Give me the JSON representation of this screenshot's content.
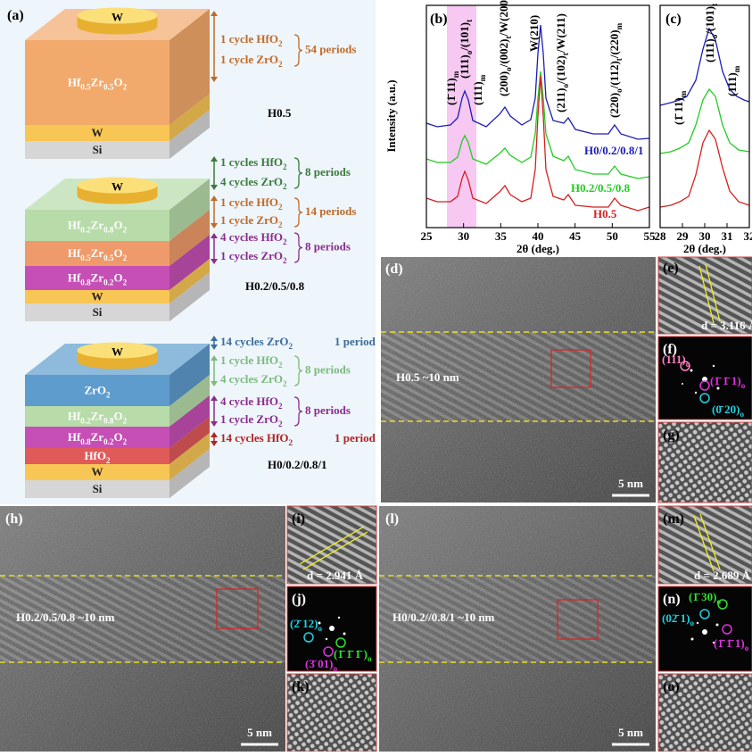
{
  "panel_a": {
    "label": "(a)",
    "stacks": [
      {
        "name": "H0.5",
        "layers": [
          "W",
          "Hf0.5Zr0.5O2",
          "W",
          "Si"
        ],
        "annotations": [
          {
            "cycles": [
              "1 cycle HfO2",
              "1 cycle ZrO2"
            ],
            "periods": "54 periods"
          }
        ]
      },
      {
        "name": "H0.2/0.5/0.8",
        "layers": [
          "W",
          "Hf0.2Zr0.8O2",
          "Hf0.5Zr0.5O2",
          "Hf0.8Zr0.2O2",
          "W",
          "Si"
        ],
        "annotations": [
          {
            "cycles": [
              "1 cycles HfO2",
              "4 cycles ZrO2"
            ],
            "periods": "8 periods"
          },
          {
            "cycles": [
              "1 cycle HfO2",
              "1 cycle ZrO2"
            ],
            "periods": "14 periods"
          },
          {
            "cycles": [
              "4 cycles HfO2",
              "1 cycles ZrO2"
            ],
            "periods": "8 periods"
          }
        ]
      },
      {
        "name": "H0/0.2/0.8/1",
        "layers": [
          "W",
          "ZrO2",
          "Hf0.2Zr0.8O2",
          "Hf0.8Zr0.2O2",
          "HfO2",
          "W",
          "Si"
        ],
        "annotations": [
          {
            "cycles": [
              "14 cycles ZrO2"
            ],
            "periods": "1 period"
          },
          {
            "cycles": [
              "1 cycle HfO2",
              "4 cycles ZrO2"
            ],
            "periods": "8 periods"
          },
          {
            "cycles": [
              "4 cycle HfO2",
              "1 cycle ZrO2"
            ],
            "periods": "8 periods"
          },
          {
            "cycles": [
              "14 cycles HfO2"
            ],
            "periods": "1 period"
          }
        ]
      }
    ]
  },
  "panel_b": {
    "label": "(b)",
    "ylabel": "Intensity (a.u.)",
    "xlabel": "2θ (deg.)",
    "xlim": [
      25,
      55
    ],
    "xticks": [
      25,
      30,
      35,
      40,
      45,
      50,
      55
    ],
    "peaks": [
      "(1̄ 11)m",
      "(111)o/(101)t",
      "(111)m",
      "(200)o/(002)t/W(200)",
      "W(210)",
      "(211)o/(102)t/W(211)",
      "(220)o/(112)t/(220)m"
    ],
    "samples": [
      "H0/0.2/0.8/1",
      "H0.2/0.5/0.8",
      "H0.5"
    ]
  },
  "panel_c": {
    "label": "(c)",
    "xlabel": "2θ (deg.)",
    "xlim": [
      28,
      32
    ],
    "xticks": [
      28,
      29,
      30,
      31,
      32
    ],
    "peaks": [
      "(1̄ 11)m",
      "(111)o/(101)t",
      "(111)m"
    ]
  },
  "panel_d": {
    "label": "(d)",
    "caption": "H0.5   ~10 nm",
    "scale": "5 nm"
  },
  "panel_e": {
    "label": "(e)",
    "spacing": "d = 3.116 Å"
  },
  "panel_f": {
    "label": "(f)",
    "spots": [
      "(111)o",
      "(1̄ 1̄ 1)o",
      "(0̄ 20)o"
    ]
  },
  "panel_g": {
    "label": "(g)"
  },
  "panel_h": {
    "label": "(h)",
    "caption": "H0.2/0.5/0.8   ~10 nm",
    "scale": "5 nm"
  },
  "panel_i": {
    "label": "(i)",
    "spacing": "d = 2.941 Å"
  },
  "panel_j": {
    "label": "(j)",
    "spots": [
      "(2̄ 12)o",
      "(1̄ 1̄ 1̄ )o",
      "(3̄ 01)o"
    ]
  },
  "panel_k": {
    "label": "(k)"
  },
  "panel_l": {
    "label": "(l)",
    "caption": "H0/0.2//0.8/1   ~10 nm",
    "scale": "5 nm"
  },
  "panel_m": {
    "label": "(m)",
    "spacing": "d = 2.689 Å"
  },
  "panel_n": {
    "label": "(n)",
    "spots": [
      "(1̄ 30)o",
      "(02̄ 1)o",
      "(1̄ 1̄ 1)o"
    ]
  },
  "panel_o": {
    "label": "(o)"
  }
}
